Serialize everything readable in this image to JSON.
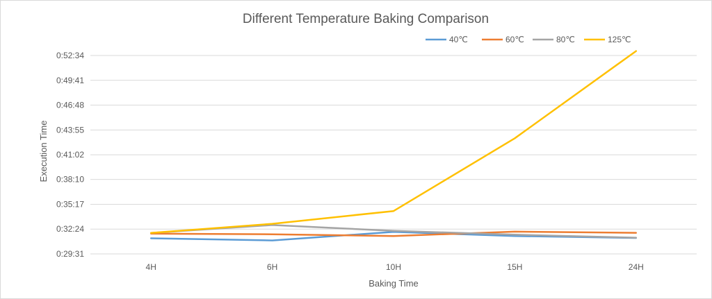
{
  "chart_data": {
    "type": "line",
    "title": "Different Temperature Baking Comparison",
    "xlabel": "Baking Time",
    "ylabel": "Execution Time",
    "categories": [
      "4H",
      "6H",
      "10H",
      "15H",
      "24H"
    ],
    "y_ticks": [
      "0:29:31",
      "0:32:24",
      "0:35:17",
      "0:38:10",
      "0:41:02",
      "0:43:55",
      "0:46:48",
      "0:49:41",
      "0:52:34"
    ],
    "ylim_seconds": [
      1771,
      3154
    ],
    "grid": "horizontal",
    "legend_position": "top-right",
    "series": [
      {
        "name": "40℃",
        "color": "#5b9bd5",
        "values": [
          "0:31:20",
          "0:31:05",
          "0:32:05",
          "0:31:36",
          "0:31:22"
        ]
      },
      {
        "name": "60℃",
        "color": "#ed7d31",
        "values": [
          "0:31:52",
          "0:31:48",
          "0:31:36",
          "0:32:06",
          "0:31:58"
        ]
      },
      {
        "name": "80℃",
        "color": "#a5a5a5",
        "values": [
          "0:31:57",
          "0:32:52",
          "0:32:12",
          "0:31:45",
          "0:31:24"
        ]
      },
      {
        "name": "125℃",
        "color": "#ffc000",
        "values": [
          "0:31:57",
          "0:33:01",
          "0:34:30",
          "0:42:57",
          "0:53:05"
        ]
      }
    ]
  }
}
